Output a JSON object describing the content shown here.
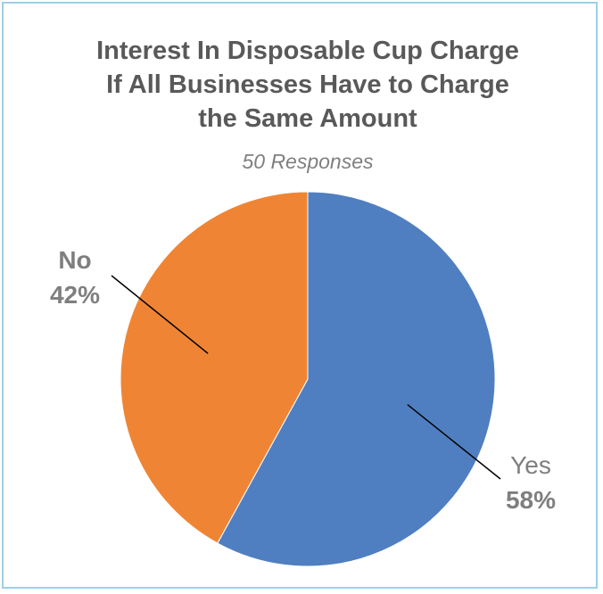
{
  "chart_data": {
    "type": "pie",
    "title_lines": [
      "Interest In Disposable Cup Charge",
      "If All Businesses Have to Charge",
      "the Same Amount"
    ],
    "subtitle": "50 Responses",
    "slices": [
      {
        "label": "Yes",
        "percent_label": "58%",
        "value": 58,
        "color": "#4f7fc0"
      },
      {
        "label": "No",
        "percent_label": "42%",
        "value": 42,
        "color": "#ef8534"
      }
    ],
    "start_angle": "12 o'clock, clockwise"
  }
}
